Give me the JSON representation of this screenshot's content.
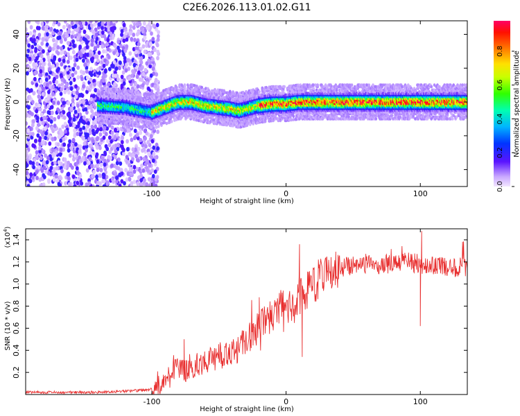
{
  "title": "C2E6.2026.113.01.02.G11",
  "colors": {
    "snr_line": "#e83030",
    "axis": "#000000",
    "background": "#ffffff"
  },
  "chart_data": [
    {
      "type": "heatmap",
      "name": "spectrogram",
      "xlabel": "Height of straight line (km)",
      "ylabel": "Frequency (Hz)",
      "xlim": [
        -194,
        135
      ],
      "ylim": [
        -50,
        48
      ],
      "x_ticks": [
        -100,
        0,
        100
      ],
      "y_ticks": [
        40,
        20,
        0,
        -20,
        -40
      ],
      "x_tick_labels": [
        "-100",
        "0",
        "100"
      ],
      "y_tick_labels": [
        "40",
        "20",
        "0",
        "-20",
        "-40"
      ],
      "noise_region_x": [
        -194,
        -95
      ],
      "signal_start_x": -140,
      "ridge_frequency": {
        "x": [
          -140,
          -120,
          -100,
          -90,
          -80,
          -70,
          -60,
          -50,
          -40,
          -35,
          -30,
          -20,
          -10,
          0,
          10,
          20,
          40,
          60,
          80,
          100,
          120,
          135
        ],
        "y": [
          -2,
          -3,
          -6,
          -3,
          0,
          0,
          -2,
          -3,
          -4,
          -5,
          -4,
          -2,
          -1,
          -1,
          0,
          0,
          0,
          0,
          0,
          0,
          0,
          0
        ]
      },
      "colorbar": {
        "label": "Normalized spectral amplitude",
        "range": [
          0,
          0.98
        ],
        "ticks": [
          0.0,
          0.2,
          0.4,
          0.6,
          0.8
        ],
        "tick_labels": [
          "0.0",
          "0.2",
          "0.4",
          "0.6",
          "0.8"
        ]
      }
    },
    {
      "type": "line",
      "name": "snr",
      "xlabel": "Height of straight line (km)",
      "ylabel": "SNR (10 * v/v)",
      "scale_note": "(x10^4)",
      "scale_base": "(x10",
      "scale_exp": "4",
      "scale_close": ")",
      "xlim": [
        -194,
        135
      ],
      "ylim": [
        0,
        1.5
      ],
      "x_ticks": [
        -100,
        0,
        100
      ],
      "x_tick_labels": [
        "-100",
        "0",
        "100"
      ],
      "y_ticks": [
        0.2,
        0.4,
        0.6,
        0.8,
        1.0,
        1.2,
        1.4
      ],
      "y_tick_labels": [
        "0.2",
        "0.4",
        "0.6",
        "0.8",
        "1.0",
        "1.2",
        "1.4"
      ],
      "series": [
        {
          "name": "SNR",
          "x": [
            -194,
            -180,
            -160,
            -140,
            -120,
            -105,
            -100,
            -95,
            -90,
            -85,
            -80,
            -75,
            -70,
            -65,
            -60,
            -55,
            -50,
            -45,
            -40,
            -35,
            -30,
            -25,
            -20,
            -15,
            -10,
            -5,
            0,
            5,
            10,
            15,
            20,
            25,
            30,
            35,
            40,
            50,
            60,
            70,
            80,
            90,
            100,
            110,
            120,
            135
          ],
          "y": [
            0.02,
            0.02,
            0.02,
            0.02,
            0.03,
            0.04,
            0.05,
            0.08,
            0.12,
            0.18,
            0.26,
            0.22,
            0.25,
            0.28,
            0.3,
            0.32,
            0.35,
            0.33,
            0.4,
            0.42,
            0.5,
            0.55,
            0.6,
            0.66,
            0.72,
            0.78,
            0.8,
            0.84,
            0.9,
            0.92,
            1.0,
            1.05,
            1.1,
            1.12,
            1.15,
            1.17,
            1.18,
            1.18,
            1.19,
            1.2,
            1.18,
            1.17,
            1.15,
            1.15
          ],
          "peaks": [
            {
              "x": -76,
              "y": 0.5
            },
            {
              "x": -20,
              "y": 0.88
            },
            {
              "x": 10,
              "y": 1.36
            },
            {
              "x": 12,
              "y": 0.34
            },
            {
              "x": 100,
              "y": 0.62
            },
            {
              "x": 101,
              "y": 1.48
            }
          ]
        }
      ]
    }
  ]
}
